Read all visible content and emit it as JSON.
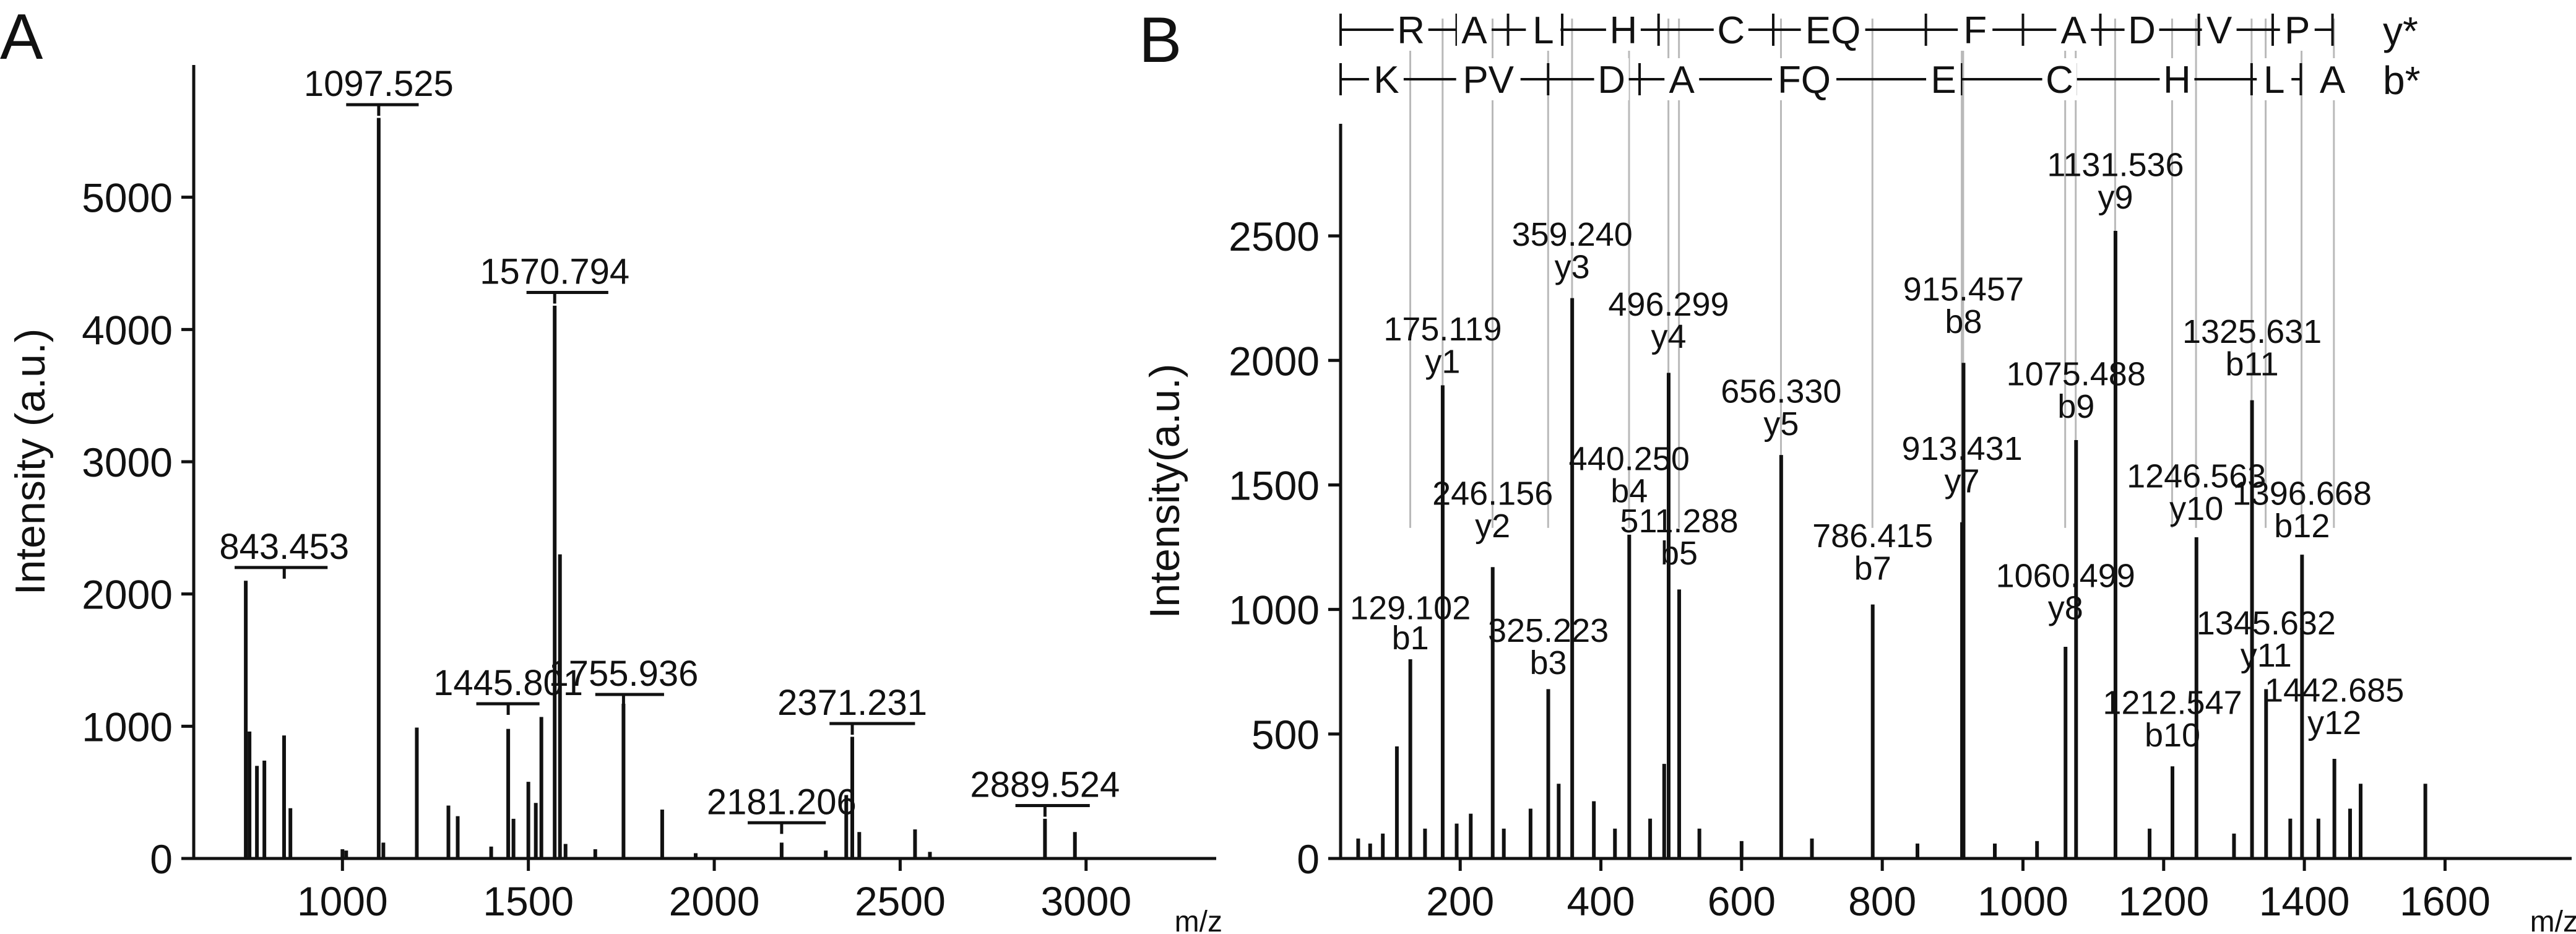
{
  "colors": {
    "ink": "#111111",
    "guide": "#b9b9b9"
  },
  "chart_data": [
    {
      "type": "bar",
      "panel_label": "A",
      "xlabel": "m/z",
      "ylabel": "Intensity (a.u.)",
      "xlim": [
        600,
        3350
      ],
      "ylim": [
        0,
        6000
      ],
      "x_ticks": [
        1000,
        1500,
        2000,
        2500,
        3000
      ],
      "y_ticks": [
        0,
        1000,
        2000,
        3000,
        4000,
        5000
      ],
      "peaks": [
        {
          "mz": 740,
          "intensity": 2100
        },
        {
          "mz": 750,
          "intensity": 960
        },
        {
          "mz": 770,
          "intensity": 700
        },
        {
          "mz": 790,
          "intensity": 740
        },
        {
          "mz": 843,
          "intensity": 930
        },
        {
          "mz": 860,
          "intensity": 380
        },
        {
          "mz": 1000,
          "intensity": 70
        },
        {
          "mz": 1010,
          "intensity": 60
        },
        {
          "mz": 1097.5,
          "intensity": 5600
        },
        {
          "mz": 1110,
          "intensity": 120
        },
        {
          "mz": 1200,
          "intensity": 990
        },
        {
          "mz": 1285,
          "intensity": 400
        },
        {
          "mz": 1310,
          "intensity": 320
        },
        {
          "mz": 1400,
          "intensity": 90
        },
        {
          "mz": 1445.8,
          "intensity": 980
        },
        {
          "mz": 1460,
          "intensity": 300
        },
        {
          "mz": 1500,
          "intensity": 580
        },
        {
          "mz": 1520,
          "intensity": 420
        },
        {
          "mz": 1535,
          "intensity": 1070
        },
        {
          "mz": 1570.8,
          "intensity": 4180
        },
        {
          "mz": 1585,
          "intensity": 2300
        },
        {
          "mz": 1600,
          "intensity": 110
        },
        {
          "mz": 1680,
          "intensity": 70
        },
        {
          "mz": 1755.9,
          "intensity": 1170
        },
        {
          "mz": 1860,
          "intensity": 370
        },
        {
          "mz": 1950,
          "intensity": 40
        },
        {
          "mz": 2181.2,
          "intensity": 120
        },
        {
          "mz": 2300,
          "intensity": 60
        },
        {
          "mz": 2355,
          "intensity": 480
        },
        {
          "mz": 2371.2,
          "intensity": 920
        },
        {
          "mz": 2390,
          "intensity": 200
        },
        {
          "mz": 2540,
          "intensity": 220
        },
        {
          "mz": 2580,
          "intensity": 50
        },
        {
          "mz": 2889.5,
          "intensity": 300
        },
        {
          "mz": 2970,
          "intensity": 200
        }
      ],
      "labels": [
        {
          "text": "843.453",
          "mz": 843.453,
          "y": 2200,
          "bar": [
            710,
            960
          ]
        },
        {
          "text": "1097.525",
          "mz": 1097.525,
          "y": 5700,
          "bar": [
            1010,
            1205
          ]
        },
        {
          "text": "1570.794",
          "mz": 1570.794,
          "y": 4280,
          "bar": [
            1495,
            1715
          ]
        },
        {
          "text": "1445.801",
          "mz": 1445.801,
          "y": 1170,
          "bar": [
            1360,
            1530
          ]
        },
        {
          "text": "1755.936",
          "mz": 1755.936,
          "y": 1240,
          "bar": [
            1680,
            1865
          ]
        },
        {
          "text": "2181.206",
          "mz": 2181.206,
          "y": 270,
          "bar": [
            2090,
            2300
          ]
        },
        {
          "text": "2371.231",
          "mz": 2371.231,
          "y": 1020,
          "bar": [
            2310,
            2540
          ]
        },
        {
          "text": "2889.524",
          "mz": 2889.524,
          "y": 400,
          "bar": [
            2810,
            3010
          ]
        }
      ]
    },
    {
      "type": "bar",
      "panel_label": "B",
      "xlabel": "m/z",
      "ylabel": "Intensity(a.u.)",
      "xlim": [
        30,
        1780
      ],
      "ylim": [
        0,
        2950
      ],
      "x_ticks": [
        200,
        400,
        600,
        800,
        1000,
        1200,
        1400,
        1600
      ],
      "y_ticks": [
        0,
        500,
        1000,
        1500,
        2000,
        2500
      ],
      "peaks": [
        {
          "mz": 55,
          "intensity": 80
        },
        {
          "mz": 72,
          "intensity": 60
        },
        {
          "mz": 90,
          "intensity": 100
        },
        {
          "mz": 110,
          "intensity": 450
        },
        {
          "mz": 129.1,
          "intensity": 800
        },
        {
          "mz": 150,
          "intensity": 120
        },
        {
          "mz": 175.1,
          "intensity": 1900
        },
        {
          "mz": 195,
          "intensity": 140
        },
        {
          "mz": 215,
          "intensity": 180
        },
        {
          "mz": 246.2,
          "intensity": 1170
        },
        {
          "mz": 262,
          "intensity": 120
        },
        {
          "mz": 300,
          "intensity": 200
        },
        {
          "mz": 325.2,
          "intensity": 680
        },
        {
          "mz": 340,
          "intensity": 300
        },
        {
          "mz": 359.2,
          "intensity": 2250
        },
        {
          "mz": 390,
          "intensity": 230
        },
        {
          "mz": 420,
          "intensity": 120
        },
        {
          "mz": 440.3,
          "intensity": 1300
        },
        {
          "mz": 470,
          "intensity": 160
        },
        {
          "mz": 490,
          "intensity": 380
        },
        {
          "mz": 496.3,
          "intensity": 1950
        },
        {
          "mz": 511.3,
          "intensity": 1080
        },
        {
          "mz": 540,
          "intensity": 120
        },
        {
          "mz": 600,
          "intensity": 70
        },
        {
          "mz": 656.3,
          "intensity": 1620
        },
        {
          "mz": 700,
          "intensity": 80
        },
        {
          "mz": 786.4,
          "intensity": 1020
        },
        {
          "mz": 850,
          "intensity": 60
        },
        {
          "mz": 913.4,
          "intensity": 1350
        },
        {
          "mz": 915.5,
          "intensity": 1990
        },
        {
          "mz": 960,
          "intensity": 60
        },
        {
          "mz": 1020,
          "intensity": 70
        },
        {
          "mz": 1060.5,
          "intensity": 850
        },
        {
          "mz": 1075.5,
          "intensity": 1680
        },
        {
          "mz": 1131.5,
          "intensity": 2520
        },
        {
          "mz": 1180,
          "intensity": 120
        },
        {
          "mz": 1212.5,
          "intensity": 370
        },
        {
          "mz": 1246.6,
          "intensity": 1290
        },
        {
          "mz": 1300,
          "intensity": 100
        },
        {
          "mz": 1325.6,
          "intensity": 1840
        },
        {
          "mz": 1345.6,
          "intensity": 680
        },
        {
          "mz": 1380,
          "intensity": 160
        },
        {
          "mz": 1396.7,
          "intensity": 1220
        },
        {
          "mz": 1420,
          "intensity": 160
        },
        {
          "mz": 1442.7,
          "intensity": 400
        },
        {
          "mz": 1465,
          "intensity": 200
        },
        {
          "mz": 1480,
          "intensity": 300
        },
        {
          "mz": 1572,
          "intensity": 300
        }
      ],
      "labels": [
        {
          "text": "129.102",
          "mz": 129.102,
          "y": 960
        },
        {
          "text": "b1",
          "mz": 129.102,
          "y": 840
        },
        {
          "text": "175.119",
          "mz": 175.119,
          "y": 2080
        },
        {
          "text": "y1",
          "mz": 175.119,
          "y": 1950
        },
        {
          "text": "246.156",
          "mz": 246.156,
          "y": 1420
        },
        {
          "text": "y2",
          "mz": 246.156,
          "y": 1290
        },
        {
          "text": "325.223",
          "mz": 325.223,
          "y": 870
        },
        {
          "text": "b3",
          "mz": 325.223,
          "y": 740
        },
        {
          "text": "359.240",
          "mz": 359.24,
          "y": 2460
        },
        {
          "text": "y3",
          "mz": 359.24,
          "y": 2330
        },
        {
          "text": "440.250",
          "mz": 440.25,
          "y": 1560
        },
        {
          "text": "b4",
          "mz": 440.25,
          "y": 1430
        },
        {
          "text": "496.299",
          "mz": 496.299,
          "y": 2180
        },
        {
          "text": "y4",
          "mz": 496.299,
          "y": 2050
        },
        {
          "text": "511.288",
          "mz": 511.288,
          "y": 1310
        },
        {
          "text": "b5",
          "mz": 511.288,
          "y": 1180
        },
        {
          "text": "656.330",
          "mz": 656.33,
          "y": 1830
        },
        {
          "text": "y5",
          "mz": 656.33,
          "y": 1700
        },
        {
          "text": "786.415",
          "mz": 786.415,
          "y": 1250
        },
        {
          "text": "b7",
          "mz": 786.415,
          "y": 1120
        },
        {
          "text": "915.457",
          "mz": 915.457,
          "y": 2240
        },
        {
          "text": "b8",
          "mz": 915.457,
          "y": 2110
        },
        {
          "text": "913.431",
          "mz": 913.431,
          "y": 1600
        },
        {
          "text": "y7",
          "mz": 913.431,
          "y": 1470
        },
        {
          "text": "1060.499",
          "mz": 1060.499,
          "y": 1090
        },
        {
          "text": "y8",
          "mz": 1060.499,
          "y": 960
        },
        {
          "text": "1075.488",
          "mz": 1075.488,
          "y": 1900
        },
        {
          "text": "b9",
          "mz": 1075.488,
          "y": 1770
        },
        {
          "text": "1131.536",
          "mz": 1131.536,
          "y": 2740
        },
        {
          "text": "y9",
          "mz": 1131.536,
          "y": 2610
        },
        {
          "text": "1212.547",
          "mz": 1212.547,
          "y": 580
        },
        {
          "text": "b10",
          "mz": 1212.547,
          "y": 450
        },
        {
          "text": "1246.563",
          "mz": 1246.563,
          "y": 1490
        },
        {
          "text": "y10",
          "mz": 1246.563,
          "y": 1360
        },
        {
          "text": "1325.631",
          "mz": 1325.631,
          "y": 2070
        },
        {
          "text": "b11",
          "mz": 1325.631,
          "y": 1940
        },
        {
          "text": "1345.632",
          "mz": 1345.632,
          "y": 900
        },
        {
          "text": "y11",
          "mz": 1345.632,
          "y": 770
        },
        {
          "text": "1396.668",
          "mz": 1396.668,
          "y": 1420
        },
        {
          "text": "b12",
          "mz": 1396.668,
          "y": 1290
        },
        {
          "text": "1442.685",
          "mz": 1442.685,
          "y": 630
        },
        {
          "text": "y12",
          "mz": 1442.685,
          "y": 500
        }
      ],
      "sequence_ladders": [
        {
          "ion_series": "y*",
          "boundaries": [
            30,
            133,
            195,
            268,
            345,
            482,
            645,
            862,
            1000,
            1110,
            1175,
            1250,
            1355,
            1440
          ],
          "residues": [
            "R",
            "A",
            "L",
            "H",
            "C",
            "EQ",
            "F",
            "A",
            "D",
            "V",
            "P"
          ],
          "residue_positions": [
            130,
            220,
            318,
            432,
            585,
            730,
            932,
            1072,
            1169,
            1279,
            1390
          ]
        },
        {
          "ion_series": "b*",
          "boundaries": [
            30,
            110,
            242,
            325,
            455,
            515,
            722,
            912,
            1075,
            1210,
            1325,
            1395
          ],
          "residues": [
            "K",
            "PV",
            "D",
            "A",
            "FQ",
            "E",
            "C",
            "H",
            "L",
            "A"
          ],
          "residue_positions": [
            95,
            240,
            415,
            515,
            689,
            887,
            1052,
            1219,
            1357,
            1440
          ]
        }
      ],
      "guide_lines_mz": [
        129,
        175,
        246,
        325,
        359,
        440,
        496,
        511,
        656,
        786,
        913,
        915,
        1060,
        1075,
        1131,
        1212,
        1246,
        1325,
        1345,
        1396,
        1442
      ]
    }
  ]
}
